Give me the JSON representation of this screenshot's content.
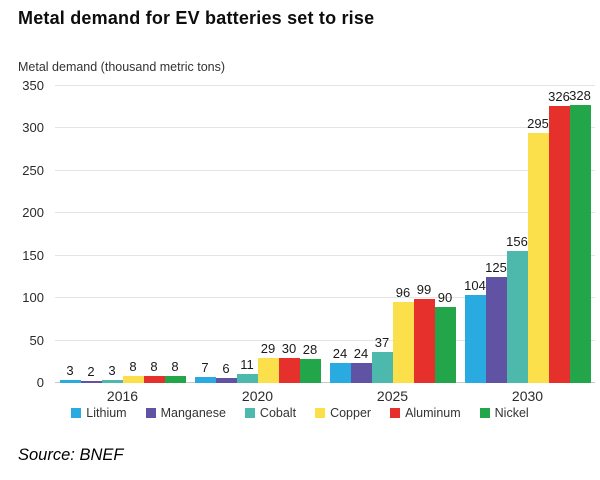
{
  "title": "Metal demand for EV batteries set to rise",
  "source": "Source: BNEF",
  "chart_data": {
    "type": "bar",
    "title": "Metal demand for EV batteries set to rise",
    "ylabel": "Metal demand (thousand metric tons)",
    "xlabel": "",
    "categories": [
      "2016",
      "2020",
      "2025",
      "2030"
    ],
    "series": [
      {
        "name": "Lithium",
        "color": "#29abe2",
        "values": [
          3,
          7,
          24,
          104
        ]
      },
      {
        "name": "Manganese",
        "color": "#6153a4",
        "values": [
          2,
          6,
          24,
          125
        ]
      },
      {
        "name": "Cobalt",
        "color": "#4db9ac",
        "values": [
          3,
          11,
          37,
          156
        ]
      },
      {
        "name": "Copper",
        "color": "#fbdf4b",
        "values": [
          8,
          29,
          96,
          295
        ]
      },
      {
        "name": "Aluminum",
        "color": "#e6302c",
        "values": [
          8,
          30,
          99,
          326
        ]
      },
      {
        "name": "Nickel",
        "color": "#23a64a",
        "values": [
          8,
          28,
          90,
          328
        ]
      }
    ],
    "ylim": [
      0,
      350
    ],
    "ytick_step": 50,
    "grid": true,
    "legend_position": "bottom"
  }
}
